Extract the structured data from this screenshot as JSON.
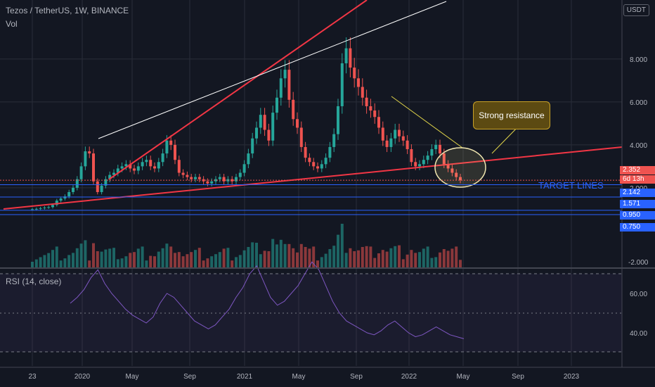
{
  "header": {
    "symbol_line": "Tezos / TetherUS, 1W, BINANCE",
    "volume_label": "Vol",
    "currency": "USDT",
    "rsi_label": "RSI (14, close)"
  },
  "annotations": {
    "callout_text": "Strong resistance",
    "target_text": "TARGET LINES"
  },
  "price_labels": {
    "last": "2.352",
    "countdown": "6d 13h",
    "target1": "2.142",
    "target2": "1.571",
    "target3": "0.950",
    "target4": "0.750"
  },
  "colors": {
    "up": "#26a69a",
    "down": "#ef5350",
    "trend_red": "#f23645",
    "trend_white": "#ffffff",
    "trend_yellow": "#e0d44a",
    "target_blue": "#2962ff",
    "rsi_line": "#7e57c2"
  },
  "chart_data": {
    "type": "candlestick",
    "y_ticks": [
      "8.000",
      "6.000",
      "4.000",
      "2.000",
      "-2.000"
    ],
    "rsi_ticks": [
      "60.00",
      "40.00"
    ],
    "x_ticks": [
      "23",
      "2020",
      "May",
      "Sep",
      "2021",
      "May",
      "Sep",
      "2022",
      "May",
      "Sep",
      "2023"
    ],
    "ohlc_close_weekly": [
      1.0,
      1.02,
      1.05,
      1.08,
      1.1,
      1.2,
      1.4,
      1.5,
      1.6,
      1.8,
      2.0,
      2.4,
      3.0,
      3.7,
      3.6,
      2.3,
      1.8,
      2.1,
      2.4,
      2.6,
      2.7,
      2.9,
      3.0,
      3.1,
      2.9,
      2.8,
      3.0,
      3.2,
      3.3,
      3.0,
      2.9,
      3.2,
      3.6,
      4.2,
      4.0,
      3.3,
      2.7,
      2.6,
      2.5,
      2.4,
      2.5,
      2.4,
      2.3,
      2.2,
      2.3,
      2.4,
      2.5,
      2.3,
      2.4,
      2.3,
      2.5,
      2.7,
      3.1,
      3.6,
      4.3,
      4.8,
      5.4,
      4.7,
      4.2,
      5.5,
      6.2,
      7.1,
      7.5,
      6.1,
      5.2,
      4.8,
      3.9,
      3.4,
      3.2,
      3.0,
      2.9,
      3.1,
      3.4,
      3.9,
      4.5,
      5.8,
      7.8,
      8.5,
      7.6,
      7.1,
      6.7,
      6.2,
      5.8,
      5.6,
      5.3,
      4.8,
      4.2,
      3.9,
      4.3,
      4.7,
      4.4,
      4.2,
      3.8,
      3.2,
      3.0,
      3.1,
      3.3,
      3.5,
      3.8,
      4.0,
      3.6,
      3.1,
      2.9,
      2.7,
      2.5,
      2.35
    ],
    "rsi_values": [
      55,
      58,
      62,
      68,
      72,
      65,
      60,
      56,
      52,
      49,
      47,
      45,
      48,
      55,
      60,
      58,
      54,
      50,
      46,
      44,
      42,
      44,
      48,
      52,
      58,
      63,
      70,
      74,
      66,
      58,
      54,
      56,
      60,
      64,
      70,
      76,
      72,
      64,
      56,
      50,
      46,
      44,
      42,
      40,
      39,
      41,
      44,
      46,
      43,
      40,
      38,
      39,
      41,
      43,
      41,
      39,
      38,
      37
    ],
    "target_prices": [
      2.142,
      1.571,
      0.95,
      0.75
    ],
    "last_price": 2.352
  }
}
